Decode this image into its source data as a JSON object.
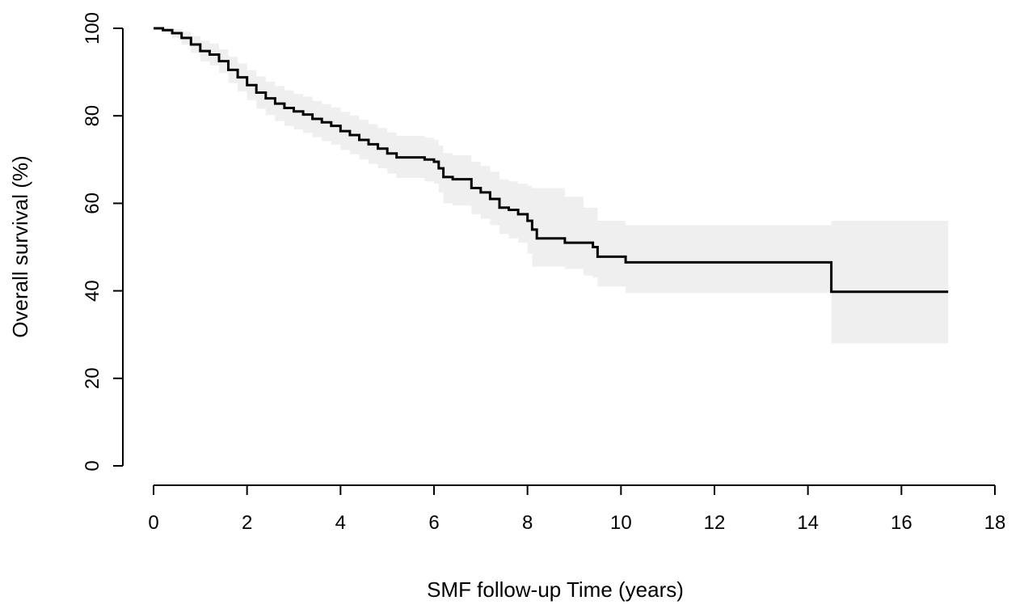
{
  "chart_data": {
    "type": "line",
    "title": "",
    "xlabel": "SMF follow-up Time (years)",
    "ylabel": "Overall survival (%)",
    "xlim": [
      0,
      18
    ],
    "ylim": [
      0,
      100
    ],
    "x_ticks": [
      0,
      2,
      4,
      6,
      8,
      10,
      12,
      14,
      16,
      18
    ],
    "y_ticks": [
      0,
      20,
      40,
      60,
      80,
      100
    ],
    "grid": false,
    "legend": "none",
    "line_color": "#000000",
    "ci_color": "#efefef",
    "series": [
      {
        "x": [
          0,
          0.2,
          0.4,
          0.6,
          0.8,
          1.0,
          1.2,
          1.4,
          1.6,
          1.8,
          2.0,
          2.2,
          2.4,
          2.6,
          2.8,
          3.0,
          3.2,
          3.4,
          3.6,
          3.8,
          4.0,
          4.2,
          4.4,
          4.6,
          4.8,
          5.0,
          5.2,
          5.4,
          5.6,
          5.8,
          6.0,
          6.1,
          6.2,
          6.4,
          6.6,
          6.8,
          7.0,
          7.2,
          7.4,
          7.6,
          7.8,
          8.0,
          8.1,
          8.2,
          8.4,
          8.8,
          9.2,
          9.4,
          9.5,
          9.8,
          10.1,
          14.5,
          17.0
        ],
        "y": [
          100,
          99.6,
          98.9,
          97.8,
          96.3,
          94.8,
          94.0,
          92.5,
          90.5,
          88.8,
          87.0,
          85.3,
          84.0,
          82.8,
          81.8,
          81.0,
          80.3,
          79.3,
          78.5,
          77.7,
          76.5,
          75.6,
          74.5,
          73.5,
          72.5,
          71.4,
          70.5,
          70.5,
          70.5,
          70.0,
          69.5,
          68.0,
          66.0,
          65.5,
          65.5,
          63.5,
          62.5,
          61.0,
          59.0,
          58.5,
          57.5,
          56.0,
          54.0,
          52.0,
          52.0,
          51.0,
          51.0,
          50.0,
          47.8,
          47.8,
          46.5,
          39.8,
          39.8
        ],
        "ci_upper": [
          100,
          100,
          99.8,
          99.2,
          98.2,
          97.2,
          96.5,
          95.2,
          93.5,
          92.0,
          90.4,
          89.0,
          87.8,
          86.8,
          85.8,
          85.0,
          84.4,
          83.4,
          82.7,
          81.9,
          80.9,
          80.1,
          79.1,
          78.1,
          77.2,
          76.2,
          75.4,
          75.4,
          75.4,
          75.0,
          74.5,
          73.2,
          71.5,
          71.0,
          71.0,
          69.5,
          68.5,
          67.2,
          65.5,
          65.0,
          64.5,
          64.0,
          63.5,
          63.5,
          63.5,
          61.5,
          59.0,
          59.0,
          56.0,
          56.0,
          55.0,
          56.0,
          56.0
        ],
        "ci_lower": [
          100,
          99.0,
          97.8,
          96.3,
          94.4,
          92.4,
          91.5,
          89.8,
          87.5,
          85.6,
          83.6,
          81.6,
          80.2,
          78.8,
          77.7,
          76.9,
          76.1,
          75.1,
          74.2,
          73.4,
          72.2,
          71.2,
          70.0,
          69.0,
          68.0,
          66.8,
          65.8,
          65.8,
          65.8,
          65.0,
          64.5,
          62.5,
          60.0,
          59.5,
          59.5,
          57.5,
          56.5,
          55.0,
          53.0,
          52.0,
          51.0,
          48.5,
          45.5,
          45.5,
          45.5,
          45.0,
          43.5,
          43.0,
          41.0,
          41.0,
          39.5,
          28.0,
          28.0
        ]
      }
    ]
  }
}
